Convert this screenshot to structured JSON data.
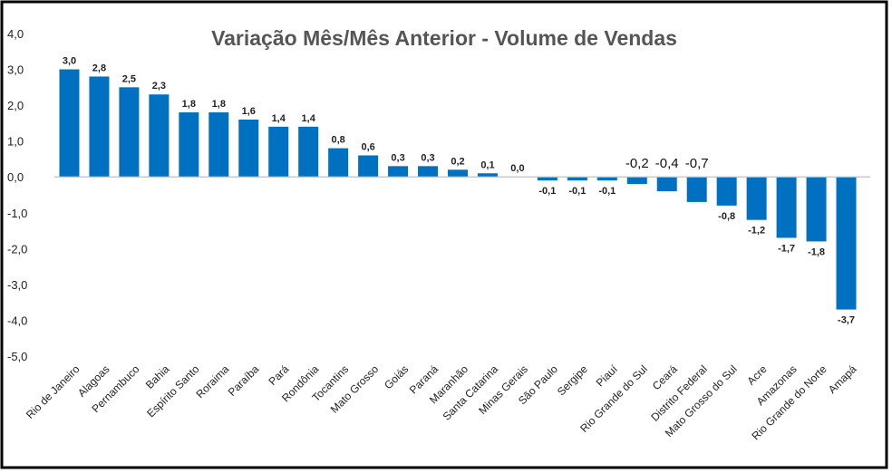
{
  "chart_data": {
    "type": "bar",
    "title": "Variação Mês/Mês Anterior - Volume de Vendas",
    "xlabel": "",
    "ylabel": "",
    "ylim": [
      -5,
      4
    ],
    "yticks": [
      "4,0",
      "3,0",
      "2,0",
      "1,0",
      "0,0",
      "-1,0",
      "-2,0",
      "-3,0",
      "-4,0",
      "-5,0"
    ],
    "ytick_values": [
      4,
      3,
      2,
      1,
      0,
      -1,
      -2,
      -3,
      -4,
      -5
    ],
    "grid": false,
    "legend": "none",
    "bar_color": "#0070C0",
    "categories": [
      "Rio de Janeiro",
      "Alagoas",
      "Pernambuco",
      "Bahia",
      "Espírito Santo",
      "Roraima",
      "Paraíba",
      "Pará",
      "Rondônia",
      "Tocantins",
      "Mato Grosso",
      "Goiás",
      "Paraná",
      "Maranhão",
      "Santa Catarina",
      "Minas Gerais",
      "São Paulo",
      "Sergipe",
      "Piauí",
      "Rio Grande do Sul",
      "Ceará",
      "Distrito Federal",
      "Mato Grosso do Sul",
      "Acre",
      "Amazonas",
      "Rio Grande do Norte",
      "Amapá"
    ],
    "values": [
      3.0,
      2.8,
      2.5,
      2.3,
      1.8,
      1.8,
      1.6,
      1.4,
      1.4,
      0.8,
      0.6,
      0.3,
      0.3,
      0.2,
      0.1,
      0.0,
      -0.1,
      -0.1,
      -0.1,
      -0.2,
      -0.4,
      -0.7,
      -0.8,
      -1.2,
      -1.7,
      -1.8,
      -3.7
    ],
    "data_labels": [
      "3,0",
      "2,8",
      "2,5",
      "2,3",
      "1,8",
      "1,8",
      "1,6",
      "1,4",
      "1,4",
      "0,8",
      "0,6",
      "0,3",
      "0,3",
      "0,2",
      "0,1",
      "0,0",
      "-0,1",
      "-0,1",
      "-0,1",
      "-0,2",
      "-0,4",
      "-0,7",
      "-0,8",
      "-1,2",
      "-1,7",
      "-1,8",
      "-3,7"
    ]
  }
}
